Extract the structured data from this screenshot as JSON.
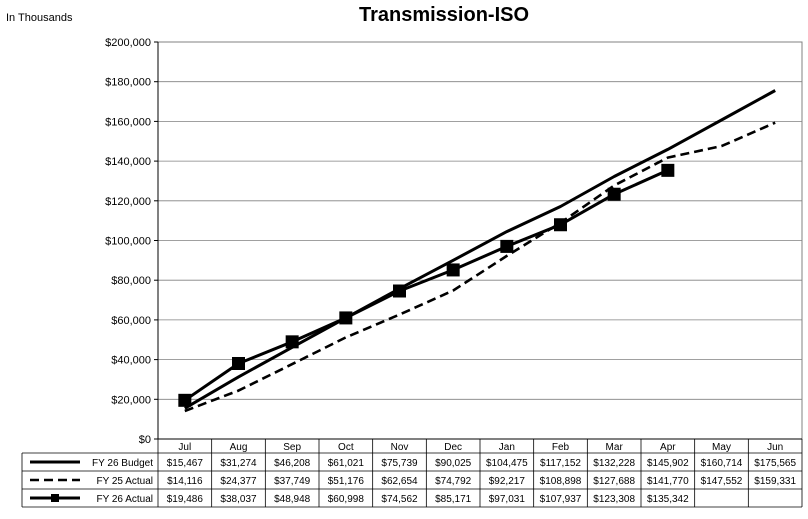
{
  "header": {
    "units_note": "In Thousands"
  },
  "chart_data": {
    "type": "line",
    "title": "Transmission-ISO",
    "units_note": "In Thousands",
    "xlabel": "",
    "ylabel": "",
    "categories": [
      "Jul",
      "Aug",
      "Sep",
      "Oct",
      "Nov",
      "Dec",
      "Jan",
      "Feb",
      "Mar",
      "Apr",
      "May",
      "Jun"
    ],
    "ylim": [
      0,
      200000
    ],
    "y_ticks": [
      0,
      20000,
      40000,
      60000,
      80000,
      100000,
      120000,
      140000,
      160000,
      180000,
      200000
    ],
    "y_tick_labels": [
      "$0",
      "$20,000",
      "$40,000",
      "$60,000",
      "$80,000",
      "$100,000",
      "$120,000",
      "$140,000",
      "$160,000",
      "$180,000",
      "$200,000"
    ],
    "grid": true,
    "legend_placement": "data table below chart",
    "series": [
      {
        "name": "FY 26 Budget",
        "style": "solid",
        "values": [
          15467,
          31274,
          46208,
          61021,
          75739,
          90025,
          104475,
          117152,
          132228,
          145902,
          160714,
          175565
        ],
        "labels": [
          "$15,467",
          "$31,274",
          "$46,208",
          "$61,021",
          "$75,739",
          "$90,025",
          "$104,475",
          "$117,152",
          "$132,228",
          "$145,902",
          "$160,714",
          "$175,565"
        ]
      },
      {
        "name": "FY 25 Actual",
        "style": "dashed",
        "values": [
          14116,
          24377,
          37749,
          51176,
          62654,
          74792,
          92217,
          108898,
          127688,
          141770,
          147552,
          159331
        ],
        "labels": [
          "$14,116",
          "$24,377",
          "$37,749",
          "$51,176",
          "$62,654",
          "$74,792",
          "$92,217",
          "$108,898",
          "$127,688",
          "$141,770",
          "$147,552",
          "$159,331"
        ]
      },
      {
        "name": "FY 26 Actual",
        "style": "solid-square-markers",
        "values": [
          19486,
          38037,
          48948,
          60998,
          74562,
          85171,
          97031,
          107937,
          123308,
          135342,
          null,
          null
        ],
        "labels": [
          "$19,486",
          "$38,037",
          "$48,948",
          "$60,998",
          "$74,562",
          "$85,171",
          "$97,031",
          "$107,937",
          "$123,308",
          "$135,342",
          "",
          ""
        ]
      }
    ],
    "colors": {
      "line": "#000000",
      "grid": "#808080",
      "axis": "#000000"
    }
  }
}
